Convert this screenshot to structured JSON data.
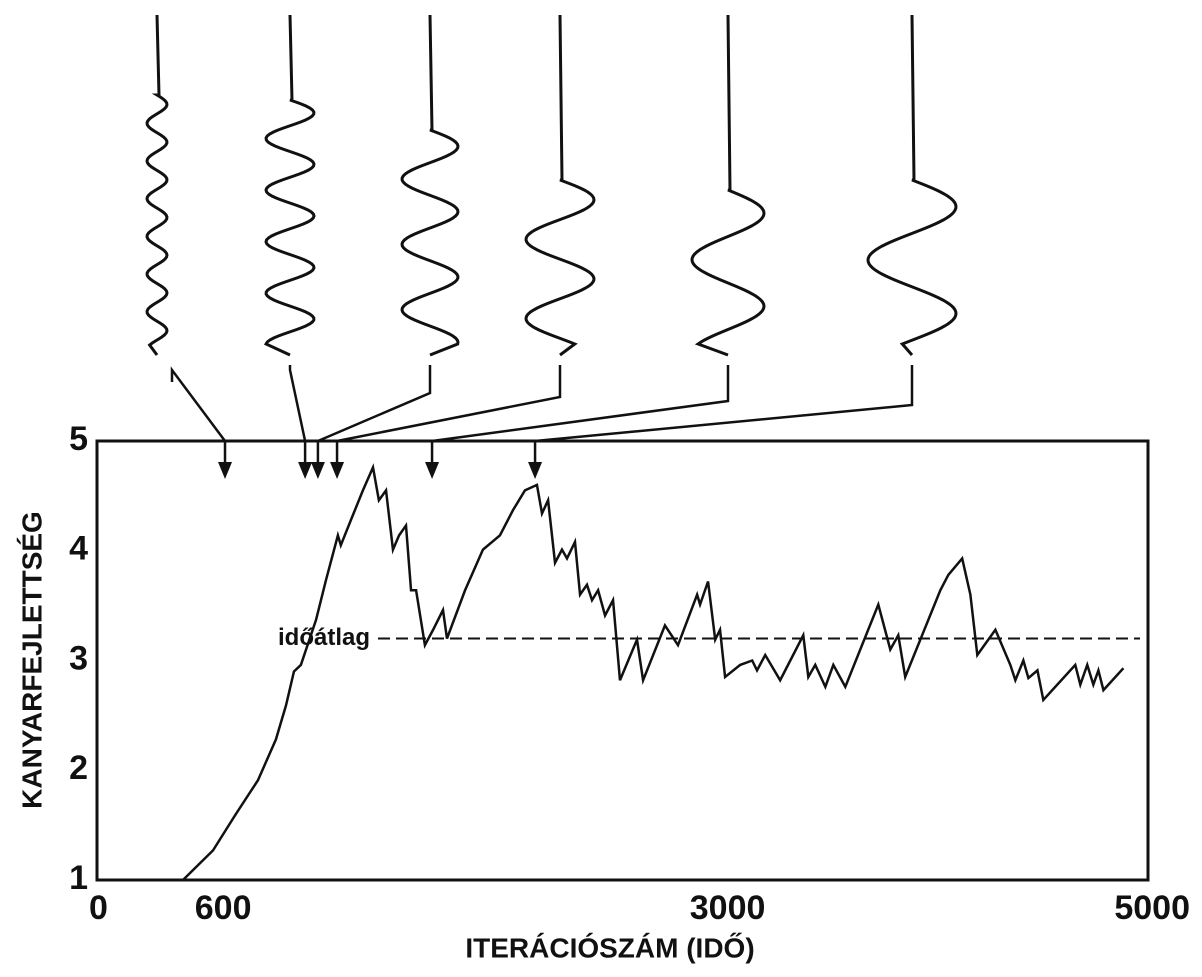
{
  "chart_data": {
    "type": "line",
    "x_label": "ITERÁCIÓSZÁM (IDŐ)",
    "y_label": "KANYARFEJLETTSÉG",
    "xlim": [
      0,
      5000
    ],
    "xticks": [
      0,
      600,
      3000,
      5000
    ],
    "ylim": [
      1,
      5
    ],
    "yticks": [
      1,
      2,
      3,
      4,
      5
    ],
    "grid": false,
    "color": "#111111",
    "x": [
      409,
      552,
      657,
      766,
      851,
      899,
      937,
      970,
      1042,
      1089,
      1146,
      1160,
      1208,
      1265,
      1313,
      1341,
      1375,
      1408,
      1437,
      1470,
      1494,
      1518,
      1560,
      1599,
      1646,
      1665,
      1751,
      1836,
      1917,
      1979,
      2036,
      2093,
      2117,
      2146,
      2179,
      2212,
      2236,
      2274,
      2298,
      2331,
      2355,
      2384,
      2417,
      2455,
      2488,
      2569,
      2598,
      2702,
      2764,
      2855,
      2869,
      2907,
      2941,
      2964,
      2988,
      3060,
      3117,
      3140,
      3179,
      3250,
      3360,
      3384,
      3417,
      3465,
      3503,
      3560,
      3717,
      3774,
      3812,
      3845,
      4012,
      4050,
      4116,
      4155,
      4188,
      4274,
      4345,
      4369,
      4407,
      4431,
      4474,
      4502,
      4654,
      4678,
      4711,
      4740,
      4764,
      4788,
      4883
    ],
    "values": [
      1.0,
      1.27,
      1.59,
      1.91,
      2.28,
      2.59,
      2.9,
      2.96,
      3.37,
      3.73,
      4.14,
      4.05,
      4.28,
      4.55,
      4.76,
      4.46,
      4.55,
      4.01,
      4.14,
      4.23,
      3.64,
      3.64,
      3.14,
      3.28,
      3.46,
      3.2,
      3.64,
      4.01,
      4.14,
      4.37,
      4.55,
      4.6,
      4.34,
      4.46,
      3.89,
      4.01,
      3.93,
      4.08,
      3.6,
      3.69,
      3.55,
      3.64,
      3.41,
      3.55,
      2.82,
      3.19,
      2.82,
      3.32,
      3.14,
      3.6,
      3.51,
      3.72,
      3.19,
      3.28,
      2.85,
      2.96,
      3.0,
      2.91,
      3.05,
      2.82,
      3.23,
      2.85,
      2.96,
      2.76,
      2.96,
      2.76,
      3.51,
      3.1,
      3.23,
      2.85,
      3.64,
      3.78,
      3.93,
      3.6,
      3.05,
      3.28,
      2.96,
      2.82,
      3.0,
      2.84,
      2.91,
      2.64,
      2.96,
      2.78,
      2.96,
      2.78,
      2.91,
      2.73,
      2.93
    ],
    "reference_line": {
      "value": 3.2,
      "label": "időátlag"
    },
    "snapshot_iterations": [
      609,
      990,
      1051,
      1142,
      1594,
      2084
    ]
  }
}
